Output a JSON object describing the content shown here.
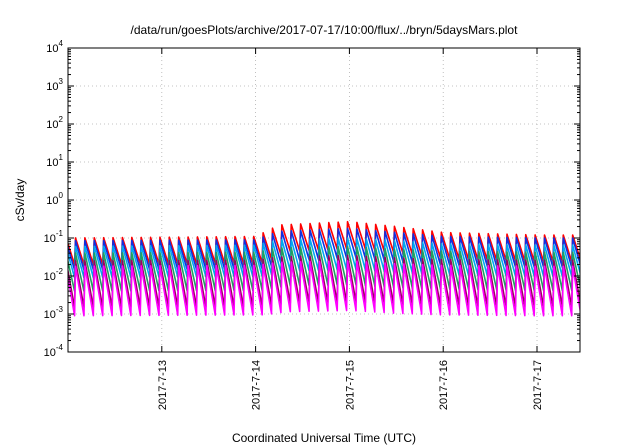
{
  "chart_data": {
    "type": "line",
    "title": "/data/run/goesPlots/archive/2017-07-17/10:00/flux/../bryn/5daysMars.plot",
    "xlabel": "Coordinated Universal Time (UTC)",
    "ylabel": "cSv/day",
    "y_scale": "log",
    "ylim": [
      0.0001,
      10000
    ],
    "y_ticks": [
      {
        "value": 0.0001,
        "base": "10",
        "exp": "-4"
      },
      {
        "value": 0.001,
        "base": "10",
        "exp": "-3"
      },
      {
        "value": 0.01,
        "base": "10",
        "exp": "-2"
      },
      {
        "value": 0.1,
        "base": "10",
        "exp": "-1"
      },
      {
        "value": 1,
        "base": "10",
        "exp": "0"
      },
      {
        "value": 10,
        "base": "10",
        "exp": "1"
      },
      {
        "value": 100,
        "base": "10",
        "exp": "2"
      },
      {
        "value": 1000,
        "base": "10",
        "exp": "3"
      },
      {
        "value": 10000,
        "base": "10",
        "exp": "4"
      }
    ],
    "xlim": [
      "2017-07-12T00:00",
      "2017-07-17T11:00"
    ],
    "x_ticks": [
      {
        "value": "2017-07-13T00:00",
        "label": "2017-7-13"
      },
      {
        "value": "2017-07-14T00:00",
        "label": "2017-7-14"
      },
      {
        "value": "2017-07-15T00:00",
        "label": "2017-7-15"
      },
      {
        "value": "2017-07-16T00:00",
        "label": "2017-7-16"
      },
      {
        "value": "2017-07-17T00:00",
        "label": "2017-7-17"
      }
    ],
    "grid": true,
    "legend": "none",
    "sawtooth_period_hours": 2.4,
    "series": [
      {
        "color": "#ff0000",
        "decay_ratio": 0.2,
        "envelope": [
          [
            "2017-07-12T00:00",
            0.1
          ],
          [
            "2017-07-14T00:00",
            0.11
          ],
          [
            "2017-07-14T06:00",
            0.22
          ],
          [
            "2017-07-15T00:00",
            0.27
          ],
          [
            "2017-07-15T12:00",
            0.2
          ],
          [
            "2017-07-16T00:00",
            0.14
          ],
          [
            "2017-07-17T00:00",
            0.12
          ],
          [
            "2017-07-17T11:00",
            0.12
          ]
        ]
      },
      {
        "color": "#1030e0",
        "decay_ratio": 0.17,
        "envelope": [
          [
            "2017-07-12T00:00",
            0.085
          ],
          [
            "2017-07-14T00:00",
            0.09
          ],
          [
            "2017-07-14T06:00",
            0.15
          ],
          [
            "2017-07-15T00:00",
            0.18
          ],
          [
            "2017-07-15T12:00",
            0.14
          ],
          [
            "2017-07-16T00:00",
            0.11
          ],
          [
            "2017-07-17T00:00",
            0.1
          ],
          [
            "2017-07-17T11:00",
            0.1
          ]
        ]
      },
      {
        "color": "#00a8f0",
        "decay_ratio": 0.15,
        "envelope": [
          [
            "2017-07-12T00:00",
            0.06
          ],
          [
            "2017-07-14T00:00",
            0.065
          ],
          [
            "2017-07-14T06:00",
            0.09
          ],
          [
            "2017-07-15T00:00",
            0.1
          ],
          [
            "2017-07-15T12:00",
            0.085
          ],
          [
            "2017-07-16T00:00",
            0.07
          ],
          [
            "2017-07-17T00:00",
            0.065
          ],
          [
            "2017-07-17T11:00",
            0.065
          ]
        ]
      },
      {
        "color": "#20a060",
        "decay_ratio": 0.1,
        "envelope": [
          [
            "2017-07-12T00:00",
            0.04
          ],
          [
            "2017-07-14T00:00",
            0.042
          ],
          [
            "2017-07-14T06:00",
            0.055
          ],
          [
            "2017-07-15T00:00",
            0.06
          ],
          [
            "2017-07-15T12:00",
            0.05
          ],
          [
            "2017-07-16T00:00",
            0.045
          ],
          [
            "2017-07-17T00:00",
            0.042
          ],
          [
            "2017-07-17T11:00",
            0.042
          ]
        ]
      },
      {
        "color": "#9a0060",
        "decay_ratio": 0.06,
        "envelope": [
          [
            "2017-07-12T00:00",
            0.025
          ],
          [
            "2017-07-14T00:00",
            0.026
          ],
          [
            "2017-07-14T06:00",
            0.032
          ],
          [
            "2017-07-15T00:00",
            0.035
          ],
          [
            "2017-07-15T12:00",
            0.03
          ],
          [
            "2017-07-16T00:00",
            0.027
          ],
          [
            "2017-07-17T00:00",
            0.026
          ],
          [
            "2017-07-17T11:00",
            0.026
          ]
        ]
      },
      {
        "color": "#ff00ff",
        "decay_ratio": 0.05,
        "envelope": [
          [
            "2017-07-12T00:00",
            0.018
          ],
          [
            "2017-07-14T00:00",
            0.019
          ],
          [
            "2017-07-14T06:00",
            0.023
          ],
          [
            "2017-07-15T00:00",
            0.025
          ],
          [
            "2017-07-15T12:00",
            0.021
          ],
          [
            "2017-07-16T00:00",
            0.019
          ],
          [
            "2017-07-17T00:00",
            0.018
          ],
          [
            "2017-07-17T11:00",
            0.018
          ]
        ]
      }
    ]
  }
}
